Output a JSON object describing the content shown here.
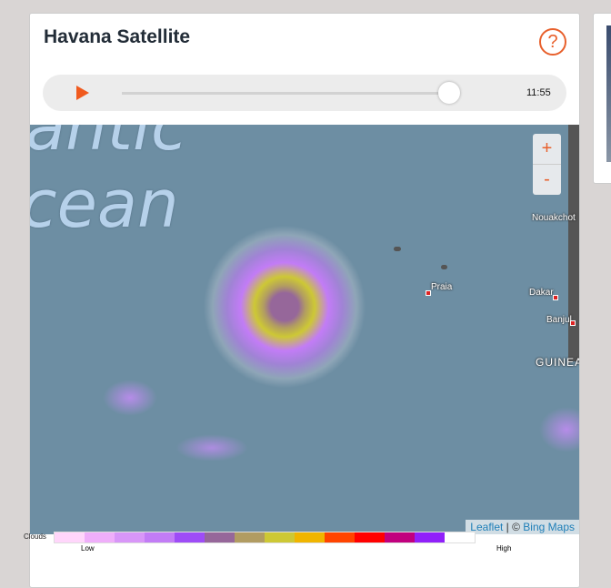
{
  "header": {
    "title": "Havana Satellite",
    "help_icon": "question-circle-icon"
  },
  "player": {
    "time": "11:55",
    "progress_percent": 96
  },
  "map": {
    "ocean_label_lines": [
      "antic",
      "cean"
    ],
    "cities": [
      "Nouakchot",
      "Praia",
      "Dakar",
      "Banjul"
    ],
    "region": "GUINEA",
    "zoom_in": "+",
    "zoom_out": "-",
    "attribution": {
      "leaflet": "Leaflet",
      "sep": " | © ",
      "bing": "Bing Maps"
    }
  },
  "legend": {
    "label": "Clouds",
    "low": "Low",
    "high": "High",
    "colors": [
      "#ffd6fb",
      "#efaefa",
      "#d896f8",
      "#c27cf6",
      "#9e4cf7",
      "#96679a",
      "#b19c62",
      "#cdc835",
      "#f0b500",
      "#ff4400",
      "#ff0000",
      "#c1007e",
      "#9020fa",
      "#ffffff"
    ]
  }
}
